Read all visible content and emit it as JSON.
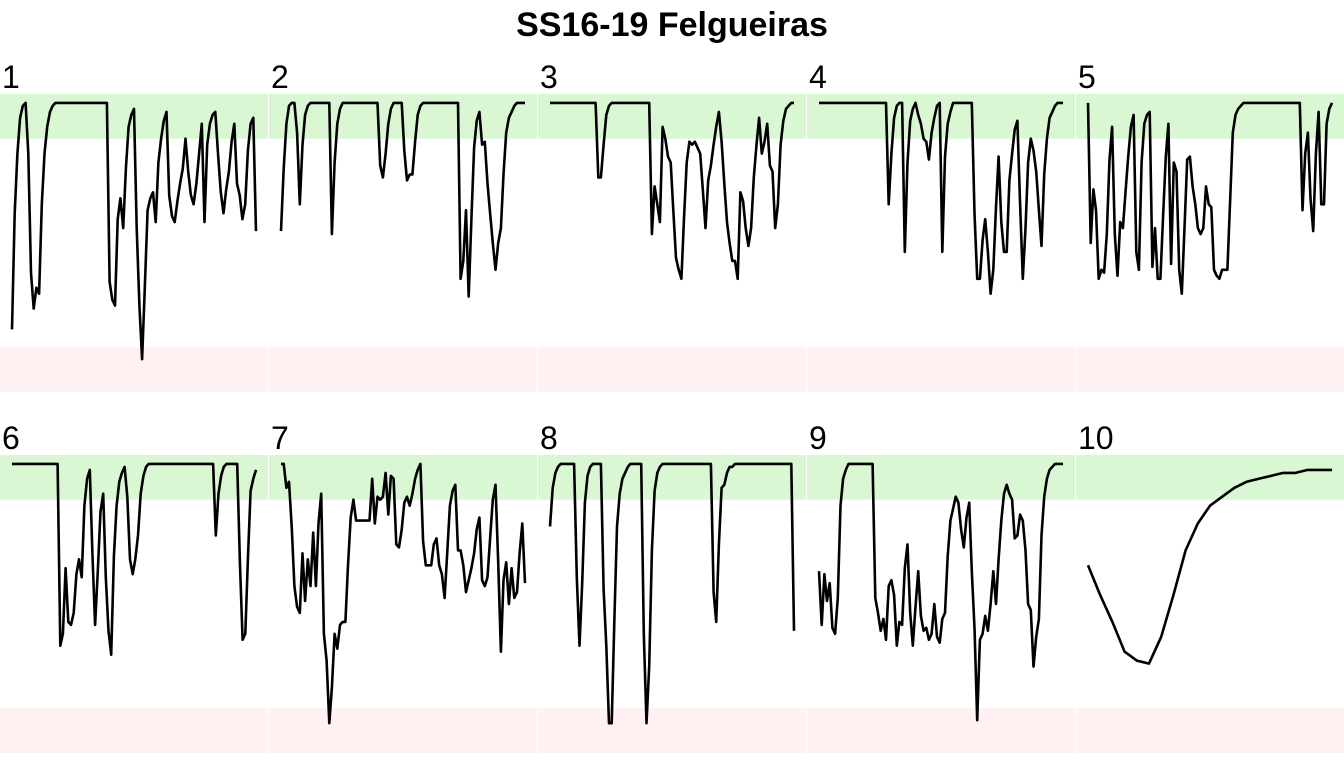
{
  "title": "SS16-19 Felgueiras",
  "chart_data": {
    "type": "line",
    "title": "SS16-19 Felgueiras",
    "xlabel": "",
    "ylabel": "",
    "ylim": [
      0,
      1
    ],
    "grid": false,
    "legend": "none",
    "bands": [
      {
        "name": "high",
        "range": [
          0.8,
          0.95
        ],
        "color": "#d9f7d3"
      },
      {
        "name": "low",
        "range": [
          -0.05,
          0.1
        ],
        "color": "#fff0f2"
      }
    ],
    "line_color": "#000000",
    "layout": {
      "rows": 2,
      "cols": 5
    },
    "panels": [
      {
        "label": "1",
        "x_end": 91,
        "y": [
          0.16,
          0.55,
          0.75,
          0.87,
          0.91,
          0.92,
          0.75,
          0.35,
          0.23,
          0.3,
          0.28,
          0.58,
          0.75,
          0.84,
          0.89,
          0.91,
          0.92,
          0.92,
          0.92,
          0.92,
          0.92,
          0.92,
          0.92,
          0.92,
          0.92,
          0.92,
          0.92,
          0.92,
          0.92,
          0.92,
          0.92,
          0.92,
          0.92,
          0.92,
          0.92,
          0.92,
          0.32,
          0.26,
          0.24,
          0.53,
          0.6,
          0.5,
          0.7,
          0.84,
          0.88,
          0.9,
          0.5,
          0.24,
          0.06,
          0.3,
          0.56,
          0.6,
          0.62,
          0.52,
          0.72,
          0.8,
          0.86,
          0.89,
          0.61,
          0.54,
          0.52,
          0.59,
          0.65,
          0.7,
          0.8,
          0.69,
          0.61,
          0.58,
          0.65,
          0.75,
          0.85,
          0.52,
          0.78,
          0.85,
          0.88,
          0.89,
          0.75,
          0.62,
          0.55,
          0.63,
          0.69,
          0.79,
          0.85,
          0.65,
          0.61,
          0.53,
          0.58,
          0.76,
          0.85,
          0.87,
          0.49
        ]
      },
      {
        "label": "2",
        "x_end": 92,
        "y": [
          0.49,
          0.7,
          0.85,
          0.91,
          0.92,
          0.92,
          0.82,
          0.58,
          0.78,
          0.88,
          0.91,
          0.92,
          0.92,
          0.92,
          0.92,
          0.92,
          0.92,
          0.92,
          0.92,
          0.48,
          0.72,
          0.85,
          0.9,
          0.92,
          0.92,
          0.92,
          0.92,
          0.92,
          0.92,
          0.92,
          0.92,
          0.92,
          0.92,
          0.92,
          0.92,
          0.92,
          0.92,
          0.71,
          0.67,
          0.75,
          0.85,
          0.9,
          0.92,
          0.92,
          0.92,
          0.92,
          0.76,
          0.66,
          0.68,
          0.68,
          0.79,
          0.88,
          0.91,
          0.92,
          0.92,
          0.92,
          0.92,
          0.92,
          0.92,
          0.92,
          0.92,
          0.92,
          0.92,
          0.92,
          0.92,
          0.92,
          0.92,
          0.33,
          0.39,
          0.56,
          0.27,
          0.53,
          0.77,
          0.86,
          0.89,
          0.78,
          0.79,
          0.65,
          0.55,
          0.45,
          0.36,
          0.45,
          0.5,
          0.68,
          0.82,
          0.87,
          0.89,
          0.91,
          0.92,
          0.92,
          0.92,
          0.92
        ]
      },
      {
        "label": "3",
        "x_end": 92,
        "y": [
          0.92,
          0.92,
          0.92,
          0.92,
          0.92,
          0.92,
          0.92,
          0.92,
          0.92,
          0.92,
          0.92,
          0.92,
          0.92,
          0.92,
          0.92,
          0.92,
          0.92,
          0.92,
          0.67,
          0.67,
          0.78,
          0.88,
          0.91,
          0.92,
          0.92,
          0.92,
          0.92,
          0.92,
          0.92,
          0.92,
          0.92,
          0.92,
          0.92,
          0.92,
          0.92,
          0.92,
          0.92,
          0.92,
          0.48,
          0.64,
          0.58,
          0.52,
          0.84,
          0.8,
          0.74,
          0.72,
          0.56,
          0.4,
          0.36,
          0.33,
          0.54,
          0.72,
          0.79,
          0.78,
          0.79,
          0.77,
          0.75,
          0.63,
          0.5,
          0.66,
          0.71,
          0.78,
          0.84,
          0.89,
          0.79,
          0.65,
          0.52,
          0.45,
          0.39,
          0.39,
          0.33,
          0.62,
          0.59,
          0.5,
          0.44,
          0.5,
          0.67,
          0.78,
          0.87,
          0.75,
          0.79,
          0.85,
          0.71,
          0.69,
          0.5,
          0.58,
          0.78,
          0.86,
          0.9,
          0.91,
          0.92,
          0.92
        ]
      },
      {
        "label": "4",
        "x_end": 92,
        "y": [
          0.92,
          0.92,
          0.92,
          0.92,
          0.92,
          0.92,
          0.92,
          0.92,
          0.92,
          0.92,
          0.92,
          0.92,
          0.92,
          0.92,
          0.92,
          0.92,
          0.92,
          0.92,
          0.92,
          0.92,
          0.92,
          0.92,
          0.92,
          0.92,
          0.92,
          0.92,
          0.58,
          0.75,
          0.87,
          0.91,
          0.92,
          0.92,
          0.42,
          0.72,
          0.86,
          0.9,
          0.92,
          0.88,
          0.85,
          0.8,
          0.79,
          0.73,
          0.82,
          0.87,
          0.91,
          0.92,
          0.42,
          0.74,
          0.85,
          0.89,
          0.92,
          0.92,
          0.92,
          0.92,
          0.92,
          0.92,
          0.92,
          0.92,
          0.55,
          0.33,
          0.33,
          0.46,
          0.53,
          0.42,
          0.28,
          0.36,
          0.57,
          0.74,
          0.52,
          0.42,
          0.42,
          0.66,
          0.75,
          0.83,
          0.86,
          0.58,
          0.33,
          0.5,
          0.72,
          0.8,
          0.76,
          0.69,
          0.56,
          0.44,
          0.68,
          0.8,
          0.87,
          0.89,
          0.91,
          0.92,
          0.92,
          0.92
        ]
      },
      {
        "label": "5",
        "x_end": 92,
        "y": [
          0.92,
          0.45,
          0.63,
          0.56,
          0.33,
          0.36,
          0.35,
          0.48,
          0.73,
          0.84,
          0.48,
          0.34,
          0.52,
          0.5,
          0.62,
          0.74,
          0.84,
          0.88,
          0.42,
          0.36,
          0.72,
          0.85,
          0.88,
          0.89,
          0.37,
          0.5,
          0.33,
          0.33,
          0.54,
          0.74,
          0.85,
          0.38,
          0.72,
          0.69,
          0.36,
          0.28,
          0.5,
          0.73,
          0.74,
          0.64,
          0.58,
          0.5,
          0.48,
          0.5,
          0.64,
          0.58,
          0.57,
          0.36,
          0.34,
          0.33,
          0.36,
          0.36,
          0.36,
          0.59,
          0.82,
          0.88,
          0.9,
          0.91,
          0.92,
          0.92,
          0.92,
          0.92,
          0.92,
          0.92,
          0.92,
          0.92,
          0.92,
          0.92,
          0.92,
          0.92,
          0.92,
          0.92,
          0.92,
          0.92,
          0.92,
          0.92,
          0.92,
          0.92,
          0.92,
          0.92,
          0.56,
          0.75,
          0.82,
          0.6,
          0.49,
          0.75,
          0.89,
          0.58,
          0.58,
          0.85,
          0.9,
          0.92
        ]
      },
      {
        "label": "6",
        "x_end": 92,
        "y": [
          0.92,
          0.92,
          0.92,
          0.92,
          0.92,
          0.92,
          0.92,
          0.92,
          0.92,
          0.92,
          0.92,
          0.92,
          0.92,
          0.92,
          0.92,
          0.92,
          0.92,
          0.92,
          0.31,
          0.35,
          0.57,
          0.39,
          0.38,
          0.42,
          0.55,
          0.6,
          0.54,
          0.78,
          0.87,
          0.9,
          0.62,
          0.38,
          0.56,
          0.76,
          0.82,
          0.54,
          0.36,
          0.28,
          0.61,
          0.78,
          0.86,
          0.89,
          0.91,
          0.81,
          0.6,
          0.55,
          0.6,
          0.68,
          0.82,
          0.88,
          0.91,
          0.92,
          0.92,
          0.92,
          0.92,
          0.92,
          0.92,
          0.92,
          0.92,
          0.92,
          0.92,
          0.92,
          0.92,
          0.92,
          0.92,
          0.92,
          0.92,
          0.92,
          0.92,
          0.92,
          0.92,
          0.92,
          0.92,
          0.92,
          0.92,
          0.92,
          0.68,
          0.82,
          0.88,
          0.91,
          0.92,
          0.92,
          0.92,
          0.92,
          0.92,
          0.59,
          0.33,
          0.35,
          0.61,
          0.83,
          0.87,
          0.9
        ]
      },
      {
        "label": "7",
        "x_end": 92,
        "y": [
          0.92,
          0.92,
          0.84,
          0.86,
          0.71,
          0.51,
          0.44,
          0.42,
          0.62,
          0.46,
          0.6,
          0.51,
          0.69,
          0.51,
          0.72,
          0.82,
          0.35,
          0.26,
          0.05,
          0.17,
          0.35,
          0.3,
          0.38,
          0.39,
          0.39,
          0.58,
          0.74,
          0.8,
          0.73,
          0.73,
          0.73,
          0.73,
          0.73,
          0.73,
          0.87,
          0.72,
          0.81,
          0.8,
          0.81,
          0.89,
          0.75,
          0.88,
          0.87,
          0.65,
          0.64,
          0.7,
          0.79,
          0.81,
          0.78,
          0.82,
          0.87,
          0.9,
          0.92,
          0.66,
          0.58,
          0.58,
          0.58,
          0.65,
          0.67,
          0.58,
          0.55,
          0.47,
          0.62,
          0.78,
          0.83,
          0.85,
          0.63,
          0.63,
          0.58,
          0.49,
          0.53,
          0.57,
          0.62,
          0.7,
          0.74,
          0.53,
          0.51,
          0.54,
          0.67,
          0.8,
          0.85,
          0.59,
          0.29,
          0.53,
          0.59,
          0.45,
          0.57,
          0.47,
          0.49,
          0.62,
          0.72,
          0.52
        ]
      },
      {
        "label": "8",
        "x_end": 92,
        "y": [
          0.71,
          0.84,
          0.89,
          0.91,
          0.92,
          0.92,
          0.92,
          0.92,
          0.92,
          0.92,
          0.54,
          0.31,
          0.52,
          0.79,
          0.88,
          0.91,
          0.92,
          0.92,
          0.92,
          0.92,
          0.5,
          0.31,
          0.05,
          0.05,
          0.4,
          0.71,
          0.82,
          0.87,
          0.89,
          0.91,
          0.92,
          0.92,
          0.92,
          0.92,
          0.92,
          0.35,
          0.05,
          0.24,
          0.63,
          0.83,
          0.89,
          0.91,
          0.92,
          0.92,
          0.92,
          0.92,
          0.92,
          0.92,
          0.92,
          0.92,
          0.92,
          0.92,
          0.92,
          0.92,
          0.92,
          0.92,
          0.92,
          0.92,
          0.92,
          0.92,
          0.92,
          0.49,
          0.39,
          0.65,
          0.84,
          0.85,
          0.89,
          0.91,
          0.91,
          0.92,
          0.92,
          0.92,
          0.92,
          0.92,
          0.92,
          0.92,
          0.92,
          0.92,
          0.92,
          0.92,
          0.92,
          0.92,
          0.92,
          0.92,
          0.92,
          0.92,
          0.92,
          0.92,
          0.92,
          0.92,
          0.92,
          0.36
        ]
      },
      {
        "label": "9",
        "x_end": 92,
        "y": [
          0.56,
          0.38,
          0.55,
          0.46,
          0.52,
          0.37,
          0.35,
          0.47,
          0.78,
          0.87,
          0.9,
          0.92,
          0.92,
          0.92,
          0.92,
          0.92,
          0.92,
          0.92,
          0.92,
          0.92,
          0.92,
          0.47,
          0.42,
          0.36,
          0.4,
          0.33,
          0.51,
          0.53,
          0.48,
          0.31,
          0.39,
          0.38,
          0.57,
          0.65,
          0.42,
          0.31,
          0.44,
          0.56,
          0.41,
          0.36,
          0.37,
          0.33,
          0.35,
          0.45,
          0.34,
          0.32,
          0.4,
          0.42,
          0.61,
          0.73,
          0.77,
          0.81,
          0.79,
          0.7,
          0.64,
          0.74,
          0.79,
          0.56,
          0.37,
          0.06,
          0.33,
          0.35,
          0.41,
          0.36,
          0.45,
          0.56,
          0.45,
          0.6,
          0.73,
          0.82,
          0.85,
          0.82,
          0.8,
          0.67,
          0.68,
          0.75,
          0.73,
          0.63,
          0.45,
          0.43,
          0.24,
          0.34,
          0.4,
          0.68,
          0.81,
          0.87,
          0.9,
          0.91,
          0.92,
          0.92,
          0.92,
          0.92
        ]
      },
      {
        "label": "10",
        "x_end": 92,
        "y": [
          0.58,
          0.48,
          0.39,
          0.29,
          0.26,
          0.25,
          0.34,
          0.48,
          0.63,
          0.72,
          0.78,
          0.81,
          0.84,
          0.86,
          0.87,
          0.88,
          0.89,
          0.89,
          0.9,
          0.9,
          0.9
        ]
      }
    ]
  }
}
